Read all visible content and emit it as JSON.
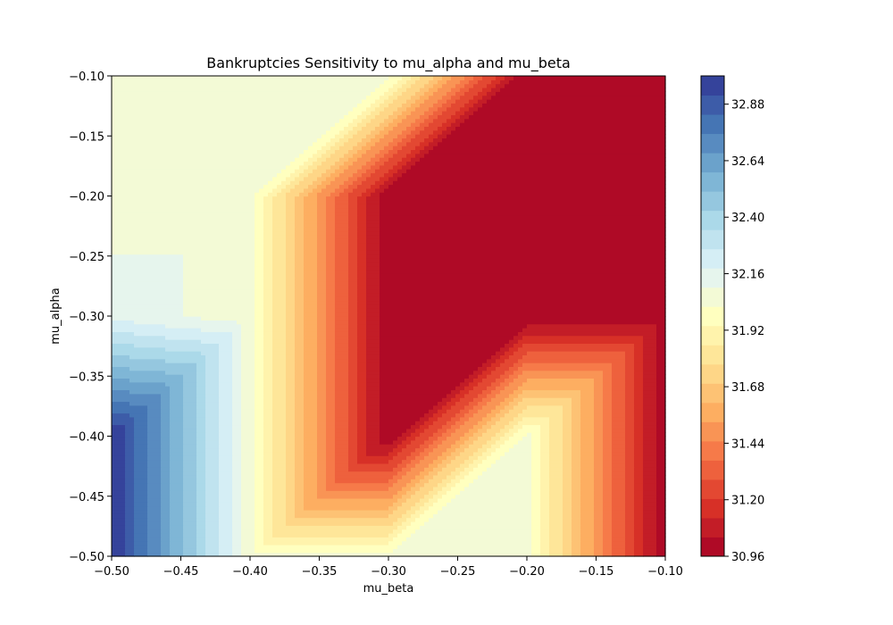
{
  "chart_data": {
    "type": "heatmap",
    "title": "Bankruptcies Sensitivity to mu_alpha and mu_beta",
    "xlabel": "mu_beta",
    "ylabel": "mu_alpha",
    "xlim": [
      -0.5,
      -0.1
    ],
    "ylim": [
      -0.5,
      -0.1
    ],
    "x": [
      -0.5,
      -0.4,
      -0.3,
      -0.2,
      -0.1
    ],
    "y": [
      -0.5,
      -0.4,
      -0.3,
      -0.2,
      -0.1
    ],
    "z": [
      [
        33.0,
        32.05,
        32.05,
        32.05,
        30.96
      ],
      [
        33.0,
        32.05,
        30.96,
        32.05,
        30.96
      ],
      [
        32.16,
        32.05,
        30.96,
        30.96,
        30.96
      ],
      [
        32.05,
        32.05,
        30.96,
        30.96,
        30.96
      ],
      [
        32.05,
        32.05,
        32.05,
        30.96,
        30.96
      ]
    ],
    "colormap": "RdYlBu",
    "x_ticks": [
      {
        "value": -0.5,
        "label": "−0.50"
      },
      {
        "value": -0.45,
        "label": "−0.45"
      },
      {
        "value": -0.4,
        "label": "−0.40"
      },
      {
        "value": -0.35,
        "label": "−0.35"
      },
      {
        "value": -0.3,
        "label": "−0.30"
      },
      {
        "value": -0.25,
        "label": "−0.25"
      },
      {
        "value": -0.2,
        "label": "−0.20"
      },
      {
        "value": -0.15,
        "label": "−0.15"
      },
      {
        "value": -0.1,
        "label": "−0.10"
      }
    ],
    "y_ticks": [
      {
        "value": -0.5,
        "label": "−0.50"
      },
      {
        "value": -0.45,
        "label": "−0.45"
      },
      {
        "value": -0.4,
        "label": "−0.40"
      },
      {
        "value": -0.35,
        "label": "−0.35"
      },
      {
        "value": -0.3,
        "label": "−0.30"
      },
      {
        "value": -0.25,
        "label": "−0.25"
      },
      {
        "value": -0.2,
        "label": "−0.20"
      },
      {
        "value": -0.15,
        "label": "−0.15"
      },
      {
        "value": -0.1,
        "label": "−0.10"
      }
    ],
    "colorbar": {
      "min": 30.96,
      "max": 33.0,
      "levels": 25,
      "ticks": [
        {
          "value": 30.96,
          "label": "30.96"
        },
        {
          "value": 31.2,
          "label": "31.20"
        },
        {
          "value": 31.44,
          "label": "31.44"
        },
        {
          "value": 31.68,
          "label": "31.68"
        },
        {
          "value": 31.92,
          "label": "31.92"
        },
        {
          "value": 32.16,
          "label": "32.16"
        },
        {
          "value": 32.4,
          "label": "32.40"
        },
        {
          "value": 32.64,
          "label": "32.64"
        },
        {
          "value": 32.88,
          "label": "32.88"
        }
      ]
    },
    "grid": false
  }
}
